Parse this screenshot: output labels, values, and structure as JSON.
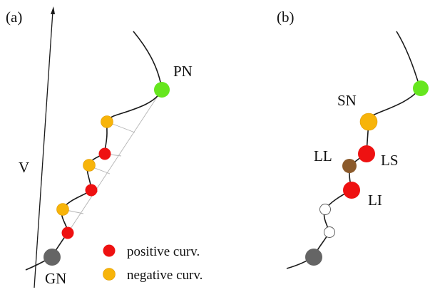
{
  "panels": {
    "a": {
      "label": "(a)",
      "axis_label": "V",
      "landmarks": {
        "pn": "PN",
        "gn": "GN"
      }
    },
    "b": {
      "label": "(b)",
      "landmarks": {
        "sn": "SN",
        "ll": "LL",
        "ls": "LS",
        "li": "LI"
      }
    }
  },
  "legend": {
    "positive": "positive curv.",
    "negative": "negative curv."
  },
  "colors": {
    "positive": "#ee1111",
    "negative": "#f7b40a",
    "pn": "#66e61e",
    "gn": "#656565",
    "ll": "#8b5a2b",
    "open": "#ffffff",
    "line": "#1a1a1a",
    "construction": "#b4b4b4"
  }
}
